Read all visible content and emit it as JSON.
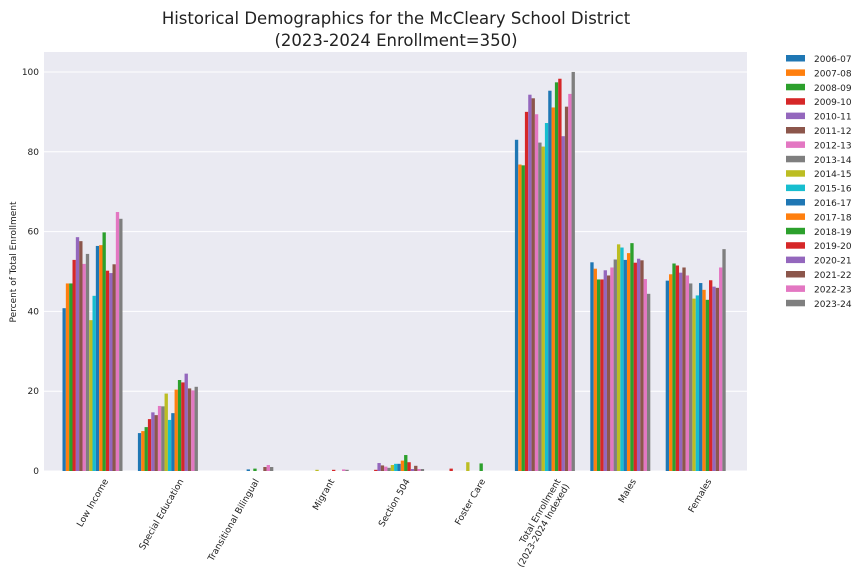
{
  "chart_data": {
    "type": "bar",
    "title_line1": "Historical Demographics for the McCleary School District",
    "title_line2": "(2023-2024 Enrollment=350)",
    "xlabel": "",
    "ylabel": "Percent of Total Enrollment",
    "ylim": [
      0,
      105
    ],
    "yticks": [
      0,
      20,
      40,
      60,
      80,
      100
    ],
    "grid": true,
    "legend_position": "outside-right",
    "categories": [
      "Low Income",
      "Special Education",
      "Transitional Bilingual",
      "Migrant",
      "Section 504",
      "Foster Care",
      "Total Enrollment\n(2023-2024 Indexed)",
      "Males",
      "Females"
    ],
    "series": [
      {
        "name": "2006-07",
        "color": "#1f77b4",
        "values": [
          40.8,
          9.5,
          0,
          0,
          0,
          0,
          83.0,
          52.3,
          47.7
        ]
      },
      {
        "name": "2007-08",
        "color": "#ff7f0e",
        "values": [
          47.0,
          10.0,
          0,
          0,
          0,
          0,
          76.8,
          50.7,
          49.3
        ]
      },
      {
        "name": "2008-09",
        "color": "#2ca02c",
        "values": [
          47.0,
          11.0,
          0,
          0,
          0,
          0,
          76.6,
          48.0,
          52.0
        ]
      },
      {
        "name": "2009-10",
        "color": "#d62728",
        "values": [
          52.9,
          13.0,
          0,
          0,
          0.3,
          0.6,
          90.0,
          48.0,
          51.5
        ]
      },
      {
        "name": "2010-11",
        "color": "#9467bd",
        "values": [
          58.6,
          14.7,
          0,
          0,
          2.0,
          0,
          94.3,
          50.3,
          49.7
        ]
      },
      {
        "name": "2011-12",
        "color": "#8c564b",
        "values": [
          57.6,
          14.0,
          0,
          0,
          1.4,
          0,
          93.4,
          49.0,
          51.0
        ]
      },
      {
        "name": "2012-13",
        "color": "#e377c2",
        "values": [
          51.9,
          16.3,
          0,
          0,
          1.1,
          0,
          89.4,
          51.0,
          49.0
        ]
      },
      {
        "name": "2013-14",
        "color": "#7f7f7f",
        "values": [
          54.4,
          16.2,
          0,
          0,
          0.8,
          0,
          82.3,
          53.0,
          47.0
        ]
      },
      {
        "name": "2014-15",
        "color": "#bcbd22",
        "values": [
          37.8,
          19.4,
          0,
          0.3,
          1.5,
          2.2,
          81.3,
          56.8,
          43.2
        ]
      },
      {
        "name": "2015-16",
        "color": "#17becf",
        "values": [
          43.9,
          12.8,
          0,
          0,
          1.8,
          0,
          87.2,
          56.0,
          44.0
        ]
      },
      {
        "name": "2016-17",
        "color": "#1f77b4",
        "values": [
          56.4,
          14.5,
          0.4,
          0,
          1.8,
          0,
          95.3,
          52.9,
          47.1
        ]
      },
      {
        "name": "2017-18",
        "color": "#ff7f0e",
        "values": [
          56.6,
          20.4,
          0,
          0,
          2.6,
          0,
          91.1,
          54.6,
          45.4
        ]
      },
      {
        "name": "2018-19",
        "color": "#2ca02c",
        "values": [
          59.8,
          22.8,
          0.6,
          0,
          4.0,
          1.9,
          97.4,
          57.1,
          42.9
        ]
      },
      {
        "name": "2019-20",
        "color": "#d62728",
        "values": [
          50.2,
          22.2,
          0,
          0.3,
          2.2,
          0,
          98.3,
          52.2,
          47.8
        ]
      },
      {
        "name": "2020-21",
        "color": "#9467bd",
        "values": [
          49.6,
          24.4,
          0,
          0,
          0.5,
          0,
          83.9,
          53.2,
          46.2
        ]
      },
      {
        "name": "2021-22",
        "color": "#8c564b",
        "values": [
          51.8,
          20.7,
          1.0,
          0,
          1.3,
          0,
          91.3,
          52.8,
          45.9
        ]
      },
      {
        "name": "2022-23",
        "color": "#e377c2",
        "values": [
          64.9,
          20.2,
          1.5,
          0.4,
          0.5,
          0,
          94.5,
          48.1,
          51.0
        ]
      },
      {
        "name": "2023-24",
        "color": "#7f7f7f",
        "values": [
          63.2,
          21.1,
          1.0,
          0.3,
          0.5,
          0,
          100.0,
          44.4,
          55.6
        ]
      }
    ]
  }
}
